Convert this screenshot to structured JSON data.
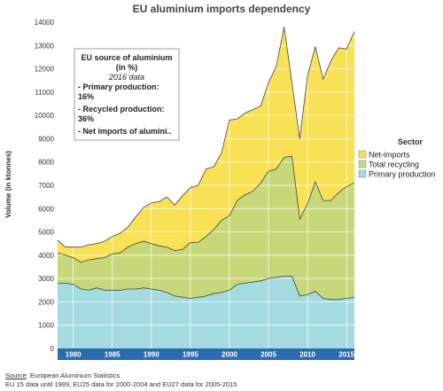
{
  "chart_data": {
    "type": "area",
    "stacked": true,
    "title": "EU aluminium imports dependency",
    "ylabel": "Volume (in ktonnes)",
    "xlabel": "",
    "xlim": [
      1978,
      2016
    ],
    "ylim": [
      0,
      14000
    ],
    "y_ticks": [
      0,
      1000,
      2000,
      3000,
      4000,
      5000,
      6000,
      7000,
      8000,
      9000,
      10000,
      11000,
      12000,
      13000,
      14000
    ],
    "x_ticks": [
      1980,
      1985,
      1990,
      1995,
      2000,
      2005,
      2010,
      2015
    ],
    "grid": true,
    "legend_title": "Sector",
    "legend_position": "right",
    "x": [
      1978,
      1979,
      1980,
      1981,
      1982,
      1983,
      1984,
      1985,
      1986,
      1987,
      1988,
      1989,
      1990,
      1991,
      1992,
      1993,
      1994,
      1995,
      1996,
      1997,
      1998,
      1999,
      2000,
      2001,
      2002,
      2003,
      2004,
      2005,
      2006,
      2007,
      2008,
      2009,
      2010,
      2011,
      2012,
      2013,
      2014,
      2015,
      2016
    ],
    "series": [
      {
        "name": "Primary production",
        "color": "#a4dbe0",
        "values": [
          2800,
          2800,
          2750,
          2550,
          2500,
          2600,
          2500,
          2500,
          2500,
          2550,
          2550,
          2600,
          2550,
          2500,
          2400,
          2250,
          2200,
          2150,
          2200,
          2250,
          2350,
          2400,
          2500,
          2750,
          2800,
          2850,
          2900,
          3000,
          3050,
          3100,
          3100,
          2250,
          2300,
          2450,
          2150,
          2100,
          2100,
          2150,
          2200
        ]
      },
      {
        "name": "Total recycling",
        "color": "#c7d879",
        "values": [
          1300,
          1200,
          1150,
          1150,
          1300,
          1250,
          1400,
          1550,
          1600,
          1800,
          1950,
          2000,
          1950,
          1900,
          1950,
          1950,
          2050,
          2400,
          2350,
          2550,
          2750,
          3100,
          3200,
          3600,
          3800,
          3900,
          4200,
          4600,
          4650,
          5100,
          5150,
          3300,
          3900,
          4700,
          4200,
          4250,
          4600,
          4800,
          4900
        ]
      },
      {
        "name": "Net-imports",
        "color": "#f9e155",
        "values": [
          550,
          350,
          450,
          650,
          650,
          650,
          700,
          750,
          850,
          850,
          1150,
          1450,
          1750,
          1900,
          2150,
          1950,
          2300,
          2350,
          2450,
          2900,
          2700,
          2900,
          4100,
          3500,
          3500,
          3500,
          3300,
          3800,
          4400,
          5600,
          3150,
          3450,
          5500,
          5800,
          5200,
          6000,
          6200,
          5900,
          6500
        ]
      }
    ],
    "annotation": {
      "heading": "EU source of aluminium",
      "unit": "(in %)",
      "subtitle": "2016 data",
      "items": [
        {
          "label": "- Primary production:",
          "value": "16%",
          "color": "#4cb8c4"
        },
        {
          "label": "- Recycled production:",
          "value": "36%",
          "color": "#a7c443"
        },
        {
          "label": "- Net imports of alumini..",
          "value": "",
          "color": ""
        }
      ]
    }
  },
  "footer": {
    "source_label": "Source",
    "source_text": ": European Aluminium Statistics",
    "note": "EU 15 data until 1999, EU25 data for 2000-2004 and EU27 data for 2005-2015"
  },
  "colors": {
    "axis_band": "#2b6bb0",
    "grid": "#ffffff",
    "outline": "#444444"
  }
}
